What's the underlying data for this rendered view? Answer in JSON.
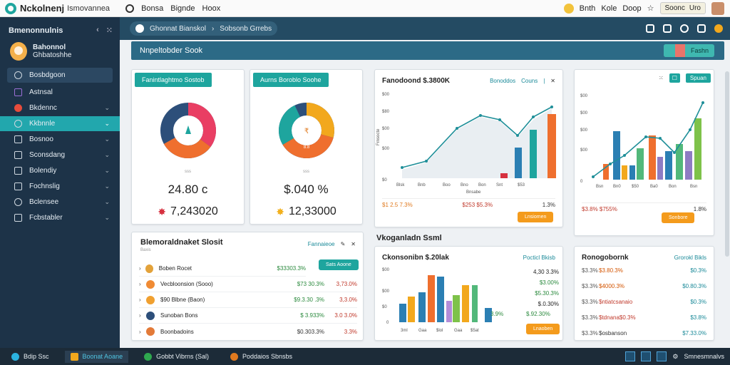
{
  "topbar": {
    "app_name": "Nckolnenj",
    "app_sub": "Ismovannea",
    "links": [
      "Bonsa",
      "Bignde",
      "Hoox"
    ],
    "right_links": [
      "Bnth",
      "Kole",
      "Doop"
    ],
    "button_label": "Soonc",
    "button_extra": "Uro"
  },
  "sidebar": {
    "title": "Bmenonnulnis",
    "profile_name": "Bahonnol",
    "profile_sub": "Ghbatoshhe",
    "items": [
      {
        "label": "Bosbdgoon"
      },
      {
        "label": "Astnsal"
      },
      {
        "label": "Bkdennc"
      },
      {
        "label": "Kkbnnle"
      },
      {
        "label": "Bosnoo"
      },
      {
        "label": "Sconsdang"
      },
      {
        "label": "Bolendiy"
      },
      {
        "label": "Fochnslig"
      },
      {
        "label": "Bclensee"
      },
      {
        "label": "Fcbstabler"
      }
    ]
  },
  "header": {
    "crumb_a": "Ghonnat Bianskol",
    "crumb_b": "Sobsonb Grrebs"
  },
  "titlebar": {
    "title": "Nnpeltobder Sook",
    "button_label": "Fashn"
  },
  "kpi1": {
    "title": "Fanintlaghtmo Sostob",
    "small": "sss",
    "main": "24.80 c",
    "sub": "7,243020",
    "colors": [
      "#e93e63",
      "#ef6f2e",
      "#2d4f7a"
    ]
  },
  "kpi2": {
    "title": "Aurns Boroblo Soohe",
    "small": "sss",
    "main": "$.040 %",
    "sub": "12,33000",
    "center_label": "8.8",
    "colors": [
      "#f2a81d",
      "#ef6f2e",
      "#1ea59e",
      "#2d4f7a"
    ]
  },
  "chart1": {
    "title": "Fanodoond $.3800K",
    "legend": [
      "Bonoddos",
      "Couns"
    ],
    "ylabel": "Frnsocte",
    "xlabel": "Bnsabe",
    "sum_left": "$1 2.5 7.3%",
    "sum_mid": "$253 $5.3%",
    "sum_right": "1.3%",
    "button": "Lnsiomen"
  },
  "chart2": {
    "legend": "Spuan",
    "sum_left": "$3.8% $755%",
    "sum_right": "1.8%",
    "button": "Sonbore"
  },
  "list": {
    "title": "Blemoraldnaket Slosit",
    "subtitle": "Baxis",
    "header_right": "Fannaieoe",
    "button": "Sats Aoone",
    "rows": [
      {
        "name": "Boben Rocet",
        "v1": "$33303.3%",
        "v2": "",
        "color": "#e3a23a"
      },
      {
        "name": "Vecbloonsion (Sooo)",
        "v1": "$73 30.3%",
        "v2": "3,73.0%",
        "color": "#f08b34"
      },
      {
        "name": "$90 Blbne (Baon)",
        "v1": "$9.3.30 .3%",
        "v2": "3,3.0%",
        "color": "#f0a030"
      },
      {
        "name": "Sunoban Bons",
        "v1": "$ 3.933%",
        "v2": "3.0 3.0%",
        "color": "#2d4f7a"
      },
      {
        "name": "Boonbadoins",
        "v1": "$0.303.3%",
        "v2": "3.3%",
        "color": "#e37a38"
      }
    ]
  },
  "section_title": "Vkoganladn Ssml",
  "chart3": {
    "title": "Ckonsonibn $.20lak",
    "legend": "Pocticl Bkisb",
    "values_labels": [
      "4,30 3.3%",
      "$3.00%",
      "$5.30.3%",
      "$.0.30%",
      "3.9%",
      "$.92.30%"
    ],
    "button": "Lnaoben"
  },
  "chart4": {
    "title": "Ronogobornk",
    "legend": "Grorokl Bikls",
    "rows": [
      {
        "l": "$3.3%",
        "m": "$3.80.3%",
        "r": "$0.3%"
      },
      {
        "l": "$3.3%",
        "m": "$4000.3%",
        "r": "$0.80.3%"
      },
      {
        "l": "$3.3%",
        "m": "$ntiatcsanaio",
        "r": "$0.3%"
      },
      {
        "l": "$3.3%",
        "m": "$tdnana$0.3%",
        "r": "$3.8%"
      },
      {
        "l": "$3.3%",
        "m": "$osbanson",
        "r": "$7.33.0%"
      }
    ]
  },
  "taskbar": {
    "items": [
      "Bdip Ssc",
      "Boonat Aoane",
      "Gobbt Vibrns (Sal)",
      "Poddaios Sbnsbs"
    ],
    "right_label": "Smnesmnalvs"
  }
}
